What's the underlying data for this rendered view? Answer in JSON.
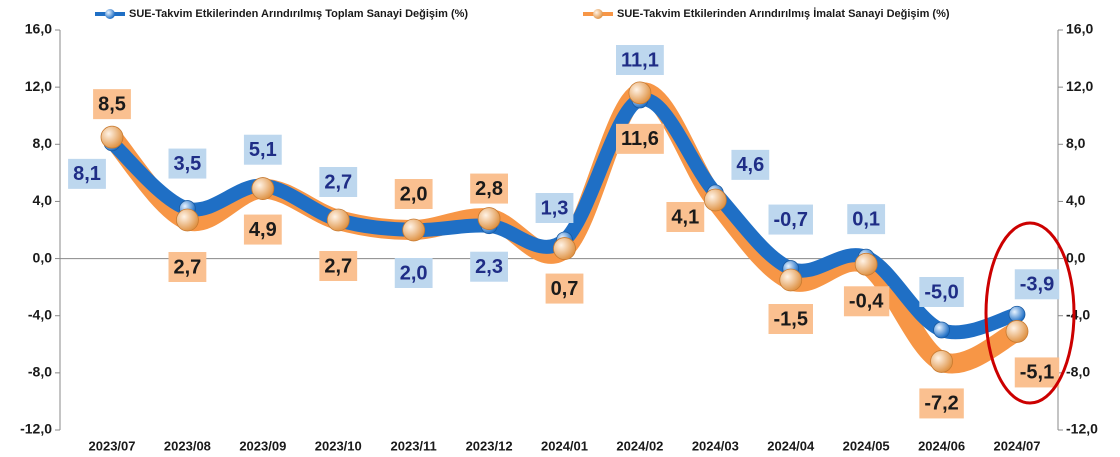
{
  "chart_data": {
    "type": "line",
    "categories": [
      "2023/07",
      "2023/08",
      "2023/09",
      "2023/10",
      "2023/11",
      "2023/12",
      "2024/01",
      "2024/02",
      "2024/03",
      "2024/04",
      "2024/05",
      "2024/06",
      "2024/07"
    ],
    "series": [
      {
        "name": "SUE-Takvim Etkilerinden Arındırılmış Toplam Sanayi Değişim (%)",
        "color": "#1f6fc5",
        "values": [
          8.1,
          3.5,
          5.1,
          2.7,
          2.0,
          2.3,
          1.3,
          11.1,
          4.6,
          -0.7,
          0.1,
          -5.0,
          -3.9
        ],
        "value_labels": [
          "8,1",
          "3,5",
          "5,1",
          "2,7",
          "2,0",
          "2,3",
          "1,3",
          "11,1",
          "4,6",
          "-0,7",
          "0,1",
          "-5,0",
          "-3,9"
        ]
      },
      {
        "name": "SUE-Takvim Etkilerinden Arındırılmış İmalat Sanayi Değişim (%)",
        "color": "#f79646",
        "values": [
          8.5,
          2.7,
          4.9,
          2.7,
          2.0,
          2.8,
          0.7,
          11.6,
          4.1,
          -1.5,
          -0.4,
          -7.2,
          -5.1
        ],
        "value_labels": [
          "8,5",
          "2,7",
          "4,9",
          "2,7",
          "2,0",
          "2,8",
          "0,7",
          "11,6",
          "4,1",
          "-1,5",
          "-0,4",
          "-7,2",
          "-5,1"
        ]
      }
    ],
    "ylim": [
      -12,
      16
    ],
    "yticks": [
      {
        "value": -12,
        "label": "-12,0"
      },
      {
        "value": -8,
        "label": "-8,0"
      },
      {
        "value": -4,
        "label": "-4,0"
      },
      {
        "value": 0,
        "label": "0,0"
      },
      {
        "value": 4,
        "label": "4,0"
      },
      {
        "value": 8,
        "label": "8,0"
      },
      {
        "value": 12,
        "label": "12,0"
      },
      {
        "value": 16,
        "label": "16,0"
      }
    ],
    "y2lim": [
      -12,
      16
    ],
    "y2ticks": [
      {
        "value": -12,
        "label": "-12,0"
      },
      {
        "value": -8,
        "label": "-8,0"
      },
      {
        "value": -4,
        "label": "-4,0"
      },
      {
        "value": 0,
        "label": "0,0"
      },
      {
        "value": 4,
        "label": "4,0"
      },
      {
        "value": 8,
        "label": "8,0"
      },
      {
        "value": 12,
        "label": "12,0"
      },
      {
        "value": 16,
        "label": "16,0"
      }
    ],
    "legend": "top"
  }
}
